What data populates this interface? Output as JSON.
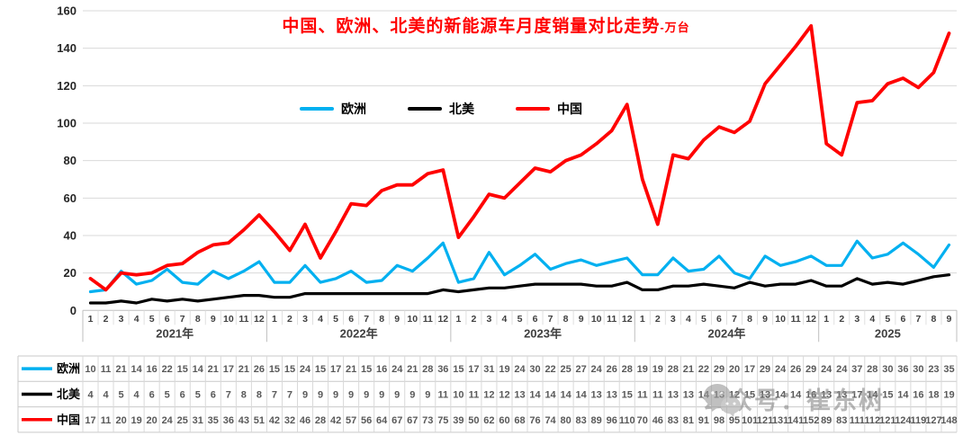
{
  "title": {
    "text": "中国、欧洲、北美的新能源车月度销量对比走势",
    "suffix": "-万台"
  },
  "legend": [
    {
      "label": "欧洲",
      "color": "#00B0F0"
    },
    {
      "label": "北美",
      "color": "#000000"
    },
    {
      "label": "中国",
      "color": "#FF0000"
    }
  ],
  "watermark": {
    "text": "公众号：崔东树",
    "icon": "wechat-icon"
  },
  "chart_data": {
    "type": "line",
    "title": "中国、欧洲、北美的新能源车月度销量对比走势-万台",
    "ylabel": "",
    "xlabel": "",
    "ylim": [
      0,
      160
    ],
    "y_ticks": [
      0,
      20,
      40,
      60,
      80,
      100,
      120,
      140,
      160
    ],
    "grid": true,
    "legend_position": "top-center",
    "years": [
      {
        "label": "2021年",
        "months": 12
      },
      {
        "label": "2022年",
        "months": 12
      },
      {
        "label": "2023年",
        "months": 12
      },
      {
        "label": "2024年",
        "months": 12
      },
      {
        "label": "2025",
        "months": 9
      }
    ],
    "x_months": [
      1,
      2,
      3,
      4,
      5,
      6,
      7,
      8,
      9,
      10,
      11,
      12,
      1,
      2,
      3,
      4,
      5,
      6,
      7,
      8,
      9,
      10,
      11,
      12,
      1,
      2,
      3,
      4,
      5,
      6,
      7,
      8,
      9,
      10,
      11,
      12,
      1,
      2,
      3,
      4,
      5,
      6,
      7,
      8,
      9,
      10,
      11,
      12,
      1,
      2,
      3,
      4,
      5,
      6,
      7,
      8,
      9
    ],
    "series": [
      {
        "name": "欧洲",
        "color": "#00B0F0",
        "values": [
          10,
          11,
          21,
          14,
          16,
          22,
          15,
          14,
          21,
          17,
          21,
          26,
          15,
          15,
          24,
          15,
          17,
          21,
          15,
          16,
          24,
          21,
          28,
          36,
          15,
          17,
          31,
          19,
          24,
          30,
          22,
          25,
          27,
          24,
          26,
          28,
          19,
          19,
          28,
          21,
          22,
          29,
          20,
          17,
          29,
          24,
          26,
          29,
          24,
          24,
          37,
          28,
          30,
          36,
          30,
          23,
          35
        ]
      },
      {
        "name": "北美",
        "color": "#000000",
        "values": [
          4,
          4,
          5,
          4,
          6,
          5,
          6,
          5,
          6,
          7,
          8,
          8,
          7,
          7,
          9,
          9,
          9,
          9,
          9,
          9,
          9,
          9,
          9,
          11,
          10,
          11,
          12,
          12,
          13,
          14,
          14,
          14,
          14,
          13,
          13,
          15,
          11,
          11,
          13,
          13,
          14,
          13,
          12,
          15,
          13,
          14,
          14,
          16,
          13,
          13,
          17,
          14,
          15,
          14,
          16,
          18,
          19
        ]
      },
      {
        "name": "中国",
        "color": "#FF0000",
        "values": [
          17,
          11,
          20,
          19,
          20,
          24,
          25,
          31,
          35,
          36,
          43,
          51,
          42,
          32,
          46,
          28,
          42,
          57,
          56,
          64,
          67,
          67,
          73,
          75,
          39,
          50,
          62,
          60,
          68,
          76,
          74,
          80,
          83,
          89,
          96,
          110,
          70,
          46,
          83,
          81,
          91,
          98,
          95,
          101,
          121,
          131,
          141,
          152,
          89,
          83,
          111,
          112,
          121,
          124,
          119,
          127,
          148
        ]
      }
    ]
  }
}
